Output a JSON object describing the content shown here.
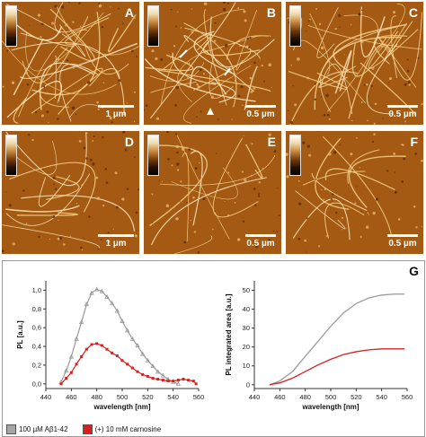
{
  "panels": [
    {
      "label": "A",
      "scale": "1 µm"
    },
    {
      "label": "B",
      "scale": "0.5 µm"
    },
    {
      "label": "C",
      "scale": "0.5 µm"
    },
    {
      "label": "D",
      "scale": "1 µm"
    },
    {
      "label": "E",
      "scale": "0.5 µm"
    },
    {
      "label": "F",
      "scale": "0.5 µm"
    }
  ],
  "figure_label": "G",
  "legend": {
    "items": [
      {
        "label": "100 µM Aβ1-42",
        "color": "#a6a6a6"
      },
      {
        "label": "(+) 10 mM carnosine",
        "color": "#d42020"
      }
    ]
  },
  "chart_data": [
    {
      "type": "scatter",
      "xlabel": "wavelength [nm]",
      "ylabel": "PL [a.u.]",
      "xlim": [
        440,
        560
      ],
      "ylim": [
        -0.05,
        1.1
      ],
      "xticks": [
        "440",
        "460",
        "480",
        "500",
        "520",
        "540",
        "560"
      ],
      "yticks": [
        "0,0",
        "0,2",
        "0,4",
        "0,6",
        "0,8",
        "1,0"
      ],
      "series": [
        {
          "name": "100 µM Aβ1-42",
          "x": [
            452,
            456,
            460,
            464,
            468,
            472,
            476,
            480,
            484,
            488,
            492,
            496,
            500,
            504,
            508,
            512,
            516,
            520,
            524,
            528,
            532,
            536,
            540,
            544
          ],
          "values": [
            0.02,
            0.14,
            0.29,
            0.48,
            0.66,
            0.85,
            0.97,
            1.01,
            0.99,
            0.93,
            0.86,
            0.78,
            0.67,
            0.57,
            0.48,
            0.41,
            0.32,
            0.25,
            0.19,
            0.13,
            0.09,
            0.05,
            0.02,
            0.0
          ]
        },
        {
          "name": "(+) 10 mM carnosine",
          "x": [
            452,
            456,
            460,
            464,
            468,
            472,
            476,
            480,
            484,
            488,
            492,
            496,
            500,
            504,
            508,
            512,
            516,
            520,
            524,
            528,
            532,
            536,
            540,
            544,
            548,
            552,
            556,
            558
          ],
          "values": [
            0.0,
            0.06,
            0.12,
            0.21,
            0.29,
            0.37,
            0.42,
            0.43,
            0.41,
            0.37,
            0.33,
            0.3,
            0.25,
            0.21,
            0.17,
            0.13,
            0.1,
            0.08,
            0.06,
            0.05,
            0.04,
            0.03,
            0.03,
            0.04,
            0.05,
            0.04,
            0.03,
            0.0
          ]
        }
      ]
    },
    {
      "type": "line",
      "xlabel": "wavelength [nm]",
      "ylabel": "PL integrated area [a.u.]",
      "xlim": [
        440,
        560
      ],
      "ylim": [
        -2,
        55
      ],
      "xticks": [
        "440",
        "460",
        "480",
        "500",
        "520",
        "540",
        "560"
      ],
      "yticks": [
        "0",
        "10",
        "20",
        "30",
        "40",
        "50"
      ],
      "series": [
        {
          "name": "100 µM Aβ1-42",
          "x": [
            452,
            460,
            470,
            480,
            490,
            500,
            510,
            520,
            530,
            540,
            550,
            558
          ],
          "values": [
            0,
            2,
            7,
            15,
            23,
            31,
            38,
            43,
            46,
            47.5,
            48,
            48
          ]
        },
        {
          "name": "(+) 10 mM carnosine",
          "x": [
            452,
            460,
            470,
            480,
            490,
            500,
            510,
            520,
            530,
            540,
            550,
            558
          ],
          "values": [
            0,
            1,
            3.5,
            7,
            10.5,
            13.5,
            16,
            17.5,
            18.5,
            19,
            19,
            19
          ]
        }
      ]
    }
  ]
}
